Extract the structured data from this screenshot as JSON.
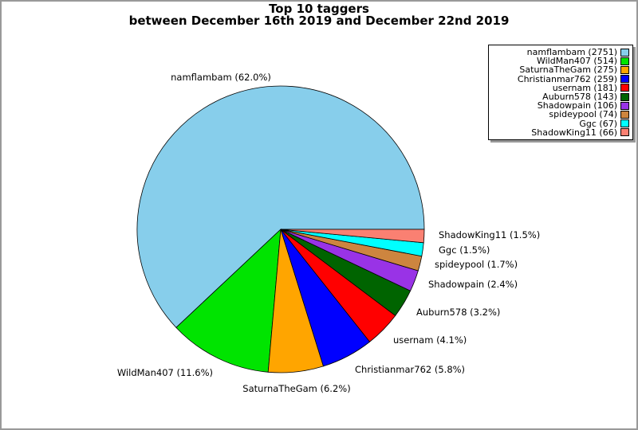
{
  "title": {
    "line1": "Top 10 taggers",
    "line2": "between December 16th 2019 and December 22nd 2019"
  },
  "chart_data": {
    "type": "pie",
    "title": "Top 10 taggers between December 16th 2019 and December 22nd 2019",
    "categories": [
      "namflambam",
      "WildMan407",
      "SaturnaTheGam",
      "Christianmar762",
      "usernam",
      "Auburn578",
      "Shadowpain",
      "spideypool",
      "Ggc",
      "ShadowKing11"
    ],
    "values": [
      2751,
      514,
      275,
      259,
      181,
      143,
      106,
      74,
      67,
      66
    ],
    "percentages": [
      62.0,
      11.6,
      6.2,
      5.8,
      4.1,
      3.2,
      2.4,
      1.7,
      1.5,
      1.5
    ],
    "percent_labels": [
      "namflambam (62.0%)",
      "WildMan407 (11.6%)",
      "SaturnaTheGam (6.2%)",
      "Christianmar762 (5.8%)",
      "usernam (4.1%)",
      "Auburn578 (3.2%)",
      "Shadowpain (2.4%)",
      "spideypool (1.7%)",
      "Ggc (1.5%)",
      "ShadowKing11 (1.5%)"
    ],
    "legend_labels": [
      "namflambam (2751)",
      "WildMan407 (514)",
      "SaturnaTheGam (275)",
      "Christianmar762 (259)",
      "usernam (181)",
      "Auburn578 (143)",
      "Shadowpain (106)",
      "spideypool (74)",
      "Ggc (67)",
      "ShadowKing11 (66)"
    ],
    "colors": [
      "#87CEEB",
      "#00E400",
      "#FFA500",
      "#0000FF",
      "#FF0000",
      "#006400",
      "#9933E6",
      "#CD853F",
      "#00FFFF",
      "#FA8072"
    ],
    "start_angle_deg": 0,
    "direction": "counterclockwise",
    "legend_position": "upper right",
    "slice_edge_color": "#000000"
  }
}
